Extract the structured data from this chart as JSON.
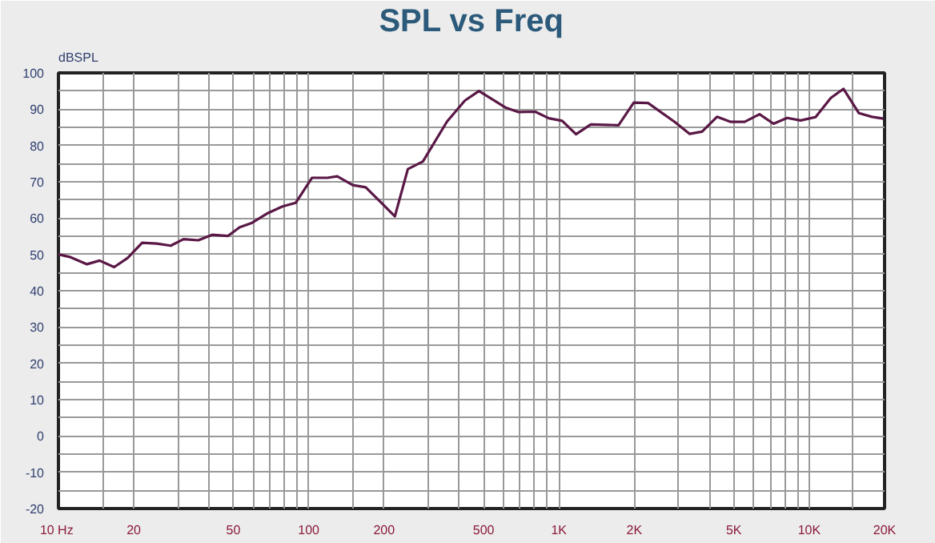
{
  "chart_data": {
    "type": "line",
    "title": "SPL vs Freq",
    "ylabel": "dBSPL",
    "log": "x",
    "grid": true,
    "marker": "none",
    "line_style": "solid",
    "xlim": [
      10,
      20000
    ],
    "ylim": [
      -20,
      100
    ],
    "xticks": [
      {
        "value": 10,
        "label": "10  Hz"
      },
      {
        "value": 15,
        "label": null
      },
      20,
      {
        "value": 30,
        "label": null
      },
      {
        "value": 40,
        "label": null
      },
      50,
      {
        "value": 60,
        "label": null
      },
      {
        "value": 70,
        "label": null
      },
      {
        "value": 80,
        "label": null
      },
      {
        "value": 90,
        "label": null
      },
      100,
      {
        "value": 150,
        "label": null
      },
      200,
      {
        "value": 300,
        "label": null
      },
      {
        "value": 400,
        "label": null
      },
      500,
      {
        "value": 600,
        "label": null
      },
      {
        "value": 700,
        "label": null
      },
      {
        "value": 800,
        "label": null
      },
      {
        "value": 900,
        "label": null
      },
      {
        "value": 1000,
        "label": "1K"
      },
      {
        "value": 2000,
        "label": "2K"
      },
      {
        "value": 3000,
        "label": null
      },
      {
        "value": 4000,
        "label": null
      },
      {
        "value": 5000,
        "label": "5K"
      },
      {
        "value": 6000,
        "label": null
      },
      {
        "value": 7000,
        "label": null
      },
      {
        "value": 8000,
        "label": null
      },
      {
        "value": 9000,
        "label": null
      },
      {
        "value": 10000,
        "label": "10K"
      },
      {
        "value": 15000,
        "label": null
      },
      {
        "value": 20000,
        "label": "20K"
      }
    ],
    "yticks": [
      -20,
      {
        "value": -15,
        "label": null
      },
      -10,
      {
        "value": -5,
        "label": null
      },
      0,
      {
        "value": 5,
        "label": null
      },
      10,
      {
        "value": 15,
        "label": null
      },
      20,
      {
        "value": 25,
        "label": null
      },
      30,
      {
        "value": 35,
        "label": null
      },
      40,
      {
        "value": 45,
        "label": null
      },
      50,
      {
        "value": 55,
        "label": null
      },
      60,
      {
        "value": 65,
        "label": null
      },
      70,
      {
        "value": 75,
        "label": null
      },
      80,
      {
        "value": 85,
        "label": null
      },
      90,
      {
        "value": 95,
        "label": null
      },
      100
    ],
    "x": [
      10,
      11.1,
      13.0,
      14.6,
      16.7,
      18.9,
      21.6,
      24.7,
      28.1,
      31.6,
      36.2,
      41.1,
      47.6,
      53.0,
      59.4,
      68.8,
      78.6,
      88.7,
      103,
      119,
      130,
      150,
      169,
      221,
      249,
      286,
      357,
      421,
      479,
      614,
      690,
      804,
      910,
      1030,
      1170,
      1340,
      1730,
      1990,
      2270,
      2900,
      3330,
      3730,
      4280,
      4860,
      5520,
      6330,
      7200,
      8160,
      9240,
      10600,
      12200,
      13700,
      15800,
      17800,
      19800
    ],
    "series": [
      {
        "color": "#5a1846",
        "values": [
          50,
          49.3,
          47.3,
          48.3,
          46.5,
          49,
          53.2,
          53,
          52.4,
          54.2,
          53.9,
          55.4,
          55.1,
          57.5,
          58.7,
          61.4,
          63.2,
          64.2,
          71.1,
          71.1,
          71.5,
          69.1,
          68.5,
          60.5,
          73.5,
          75.6,
          86.6,
          92.4,
          95,
          90.4,
          89.2,
          89.3,
          87.5,
          86.8,
          83.1,
          85.8,
          85.6,
          91.8,
          91.7,
          86.5,
          83.2,
          83.8,
          87.9,
          86.5,
          86.5,
          88.6,
          86.0,
          87.6,
          86.9,
          87.8,
          93.1,
          95.6,
          88.9,
          87.9,
          87.4
        ]
      }
    ]
  }
}
